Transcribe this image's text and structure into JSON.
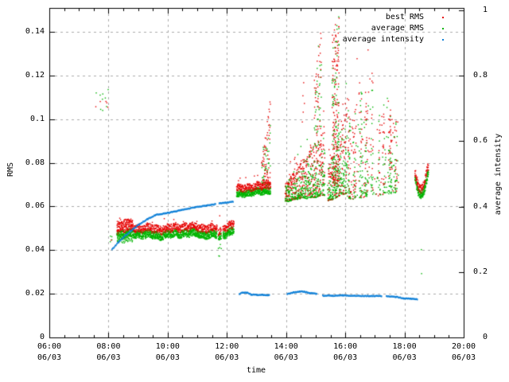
{
  "chart_data": {
    "type": "scatter",
    "title": "",
    "xlabel": "time",
    "ylabel": "RMS",
    "y2label": "average intensity",
    "x_range": [
      6,
      20
    ],
    "x_minor_step_hours": 0.5,
    "y_range": [
      0,
      0.151
    ],
    "y2_range": [
      0,
      1.007
    ],
    "grid": true,
    "grid_color": "#ababab",
    "background": "#ffffff",
    "x_ticks": [
      {
        "hour": 6,
        "time": "06:00",
        "date": "06/03"
      },
      {
        "hour": 8,
        "time": "08:00",
        "date": "06/03"
      },
      {
        "hour": 10,
        "time": "10:00",
        "date": "06/03"
      },
      {
        "hour": 12,
        "time": "12:00",
        "date": "06/03"
      },
      {
        "hour": 14,
        "time": "14:00",
        "date": "06/03"
      },
      {
        "hour": 16,
        "time": "16:00",
        "date": "06/03"
      },
      {
        "hour": 18,
        "time": "18:00",
        "date": "06/03"
      },
      {
        "hour": 20,
        "time": "20:00",
        "date": "06/03"
      }
    ],
    "y_ticks": [
      {
        "v": 0,
        "label": "0"
      },
      {
        "v": 0.02,
        "label": "0.02"
      },
      {
        "v": 0.04,
        "label": "0.04"
      },
      {
        "v": 0.06,
        "label": "0.06"
      },
      {
        "v": 0.08,
        "label": "0.08"
      },
      {
        "v": 0.1,
        "label": "0.1"
      },
      {
        "v": 0.12,
        "label": "0.12"
      },
      {
        "v": 0.14,
        "label": "0.14"
      }
    ],
    "y2_ticks": [
      {
        "v": 0,
        "label": "0"
      },
      {
        "v": 0.2,
        "label": "0.2"
      },
      {
        "v": 0.4,
        "label": "0.4"
      },
      {
        "v": 0.6,
        "label": "0.6"
      },
      {
        "v": 0.8,
        "label": "0.8"
      },
      {
        "v": 1,
        "label": "1"
      }
    ],
    "legend": {
      "position": "top-right",
      "entries": [
        {
          "label": "best RMS",
          "color": "#e60000",
          "axis": "left"
        },
        {
          "label": "average RMS",
          "color": "#00b400",
          "axis": "left"
        },
        {
          "label": "average intensity",
          "color": "#0f80d8",
          "axis": "right"
        }
      ]
    },
    "series_segments": [
      {
        "id": "pre-sunrise-cluster",
        "type": "sparse",
        "t": [
          7.55,
          8.05
        ],
        "rms": [
          0.104,
          0.116
        ],
        "n": 14,
        "red_frac": 0.55
      },
      {
        "id": "band-start-dots",
        "type": "sparse",
        "t": [
          8.03,
          8.1
        ],
        "rms": [
          0.044,
          0.0495
        ],
        "n": 5,
        "red_frac": 0.2
      },
      {
        "id": "band-morning",
        "type": "band",
        "t": [
          8.28,
          11.64
        ],
        "base": [
          0.0455,
          0.046
        ],
        "wiggle": 0.0012,
        "green_th": 0.0035,
        "red_th": 0.003,
        "out_rate": 0.06,
        "out_extra": 0.003,
        "density": 1,
        "flare": {
          "t": [
            8.28,
            8.8
          ],
          "red_to": 0.0545,
          "green_lo": 0.0435
        }
      },
      {
        "id": "band-noon-gap-cluster",
        "type": "band",
        "t": [
          11.7,
          11.79
        ],
        "base": [
          0.0445,
          0.0455
        ],
        "wiggle": 0.0008,
        "green_th": 0.003,
        "red_th": 0.0025,
        "density": 0.9,
        "tail_to": 0.037
      },
      {
        "id": "band-morning-2",
        "type": "band",
        "t": [
          11.86,
          12.21
        ],
        "base": [
          0.046,
          0.047
        ],
        "wiggle": 0.001,
        "green_th": 0.0035,
        "red_th": 0.003,
        "density": 1
      },
      {
        "id": "band-midday",
        "type": "band",
        "t": [
          12.32,
          13.45
        ],
        "base": [
          0.064,
          0.0665
        ],
        "wiggle": 0.0008,
        "green_th": 0.003,
        "red_th": 0.0028,
        "out_rate": 0.12,
        "out_extra": 0.0045,
        "density": 1
      },
      {
        "id": "spike-1320",
        "type": "spike",
        "t": [
          13.17,
          13.45
        ],
        "bottom": 0.07,
        "top": [
          0.082,
          0.11
        ],
        "density": 0.55,
        "bias": 1.5
      },
      {
        "id": "wedge-afternoon-1",
        "type": "wedge",
        "t": [
          13.96,
          15.3
        ],
        "base": [
          0.0625,
          0.0655
        ],
        "top": [
          0.071,
          0.094
        ],
        "scatter": 0.009,
        "density": 1
      },
      {
        "id": "spike-1500",
        "type": "spike",
        "t": [
          14.95,
          15.17
        ],
        "bottom": 0.088,
        "top": [
          0.12,
          0.1435
        ],
        "density": 0.45,
        "bias": 1.1
      },
      {
        "id": "wedge-afternoon-2",
        "type": "wedge",
        "t": [
          15.4,
          16.03
        ],
        "base": [
          0.063,
          0.066
        ],
        "top": [
          0.078,
          0.104
        ],
        "scatter": 0.011,
        "density": 1
      },
      {
        "id": "spike-1540",
        "type": "spike",
        "t": [
          15.55,
          15.78
        ],
        "bottom": 0.07,
        "top": [
          0.14,
          0.148
        ],
        "density": 1.3,
        "bias": 1.2
      },
      {
        "id": "wedge-evening",
        "type": "wedge",
        "t": [
          16.05,
          17.77
        ],
        "base": [
          0.0635,
          0.0665
        ],
        "top": [
          0.108,
          0.106
        ],
        "top_wiggle": 0.01,
        "scatter": 0.008,
        "density": 1,
        "streaks": true,
        "gaps": [
          [
            16.93,
            17.12
          ]
        ]
      },
      {
        "id": "cluster-after-18",
        "type": "uband",
        "t": [
          18.35,
          18.8
        ],
        "base_pts": [
          [
            18.35,
            0.0705
          ],
          [
            18.45,
            0.065
          ],
          [
            18.55,
            0.0635
          ],
          [
            18.65,
            0.066
          ],
          [
            18.74,
            0.0715
          ],
          [
            18.8,
            0.0745
          ]
        ],
        "green_th": 0.0035,
        "red_th": 0.0028,
        "density": 1.1
      },
      {
        "id": "outlier-dots",
        "type": "dots",
        "pts": [
          [
            14.53,
            0.099,
            "r"
          ],
          [
            14.55,
            0.111,
            "r"
          ],
          [
            14.56,
            0.1035,
            "r"
          ],
          [
            14.575,
            0.117,
            "r"
          ],
          [
            14.6,
            0.1075,
            "r"
          ],
          [
            16.38,
            0.128,
            "r"
          ],
          [
            16.75,
            0.132,
            "r"
          ],
          [
            12.62,
            0.0735,
            "r"
          ],
          [
            13.02,
            0.0745,
            "r"
          ],
          [
            11.74,
            0.056,
            "r"
          ],
          [
            18.55,
            0.0405,
            "g"
          ],
          [
            18.56,
            0.0295,
            "g"
          ]
        ]
      }
    ],
    "intensity_curve": {
      "color": "#0f80d8",
      "segments": [
        [
          [
            8.1,
            0.272
          ],
          [
            8.32,
            0.294
          ],
          [
            8.5,
            0.31
          ],
          [
            8.81,
            0.334
          ],
          [
            9.04,
            0.35
          ],
          [
            9.31,
            0.365
          ],
          [
            9.57,
            0.377
          ],
          [
            10.02,
            0.384
          ],
          [
            10.47,
            0.392
          ],
          [
            10.92,
            0.401
          ],
          [
            11.3,
            0.406
          ],
          [
            11.62,
            0.41
          ]
        ],
        [
          [
            11.72,
            0.412
          ],
          [
            11.95,
            0.4145
          ],
          [
            12.21,
            0.418
          ]
        ],
        [
          [
            12.4,
            0.135
          ],
          [
            12.52,
            0.1405
          ],
          [
            12.66,
            0.14
          ],
          [
            12.8,
            0.134
          ],
          [
            13.0,
            0.1325
          ],
          [
            13.2,
            0.133
          ],
          [
            13.42,
            0.132
          ]
        ],
        [
          [
            14.02,
            0.1355
          ],
          [
            14.22,
            0.14
          ],
          [
            14.45,
            0.1435
          ],
          [
            14.62,
            0.142
          ],
          [
            14.8,
            0.138
          ],
          [
            15.03,
            0.136
          ]
        ],
        [
          [
            15.22,
            0.1305
          ],
          [
            15.55,
            0.13
          ],
          [
            15.9,
            0.1315
          ],
          [
            16.3,
            0.13
          ],
          [
            16.75,
            0.1295
          ],
          [
            17.22,
            0.129
          ]
        ],
        [
          [
            17.37,
            0.129
          ],
          [
            17.7,
            0.1265
          ],
          [
            17.95,
            0.1225
          ],
          [
            18.2,
            0.121
          ],
          [
            18.44,
            0.119
          ]
        ]
      ]
    }
  }
}
